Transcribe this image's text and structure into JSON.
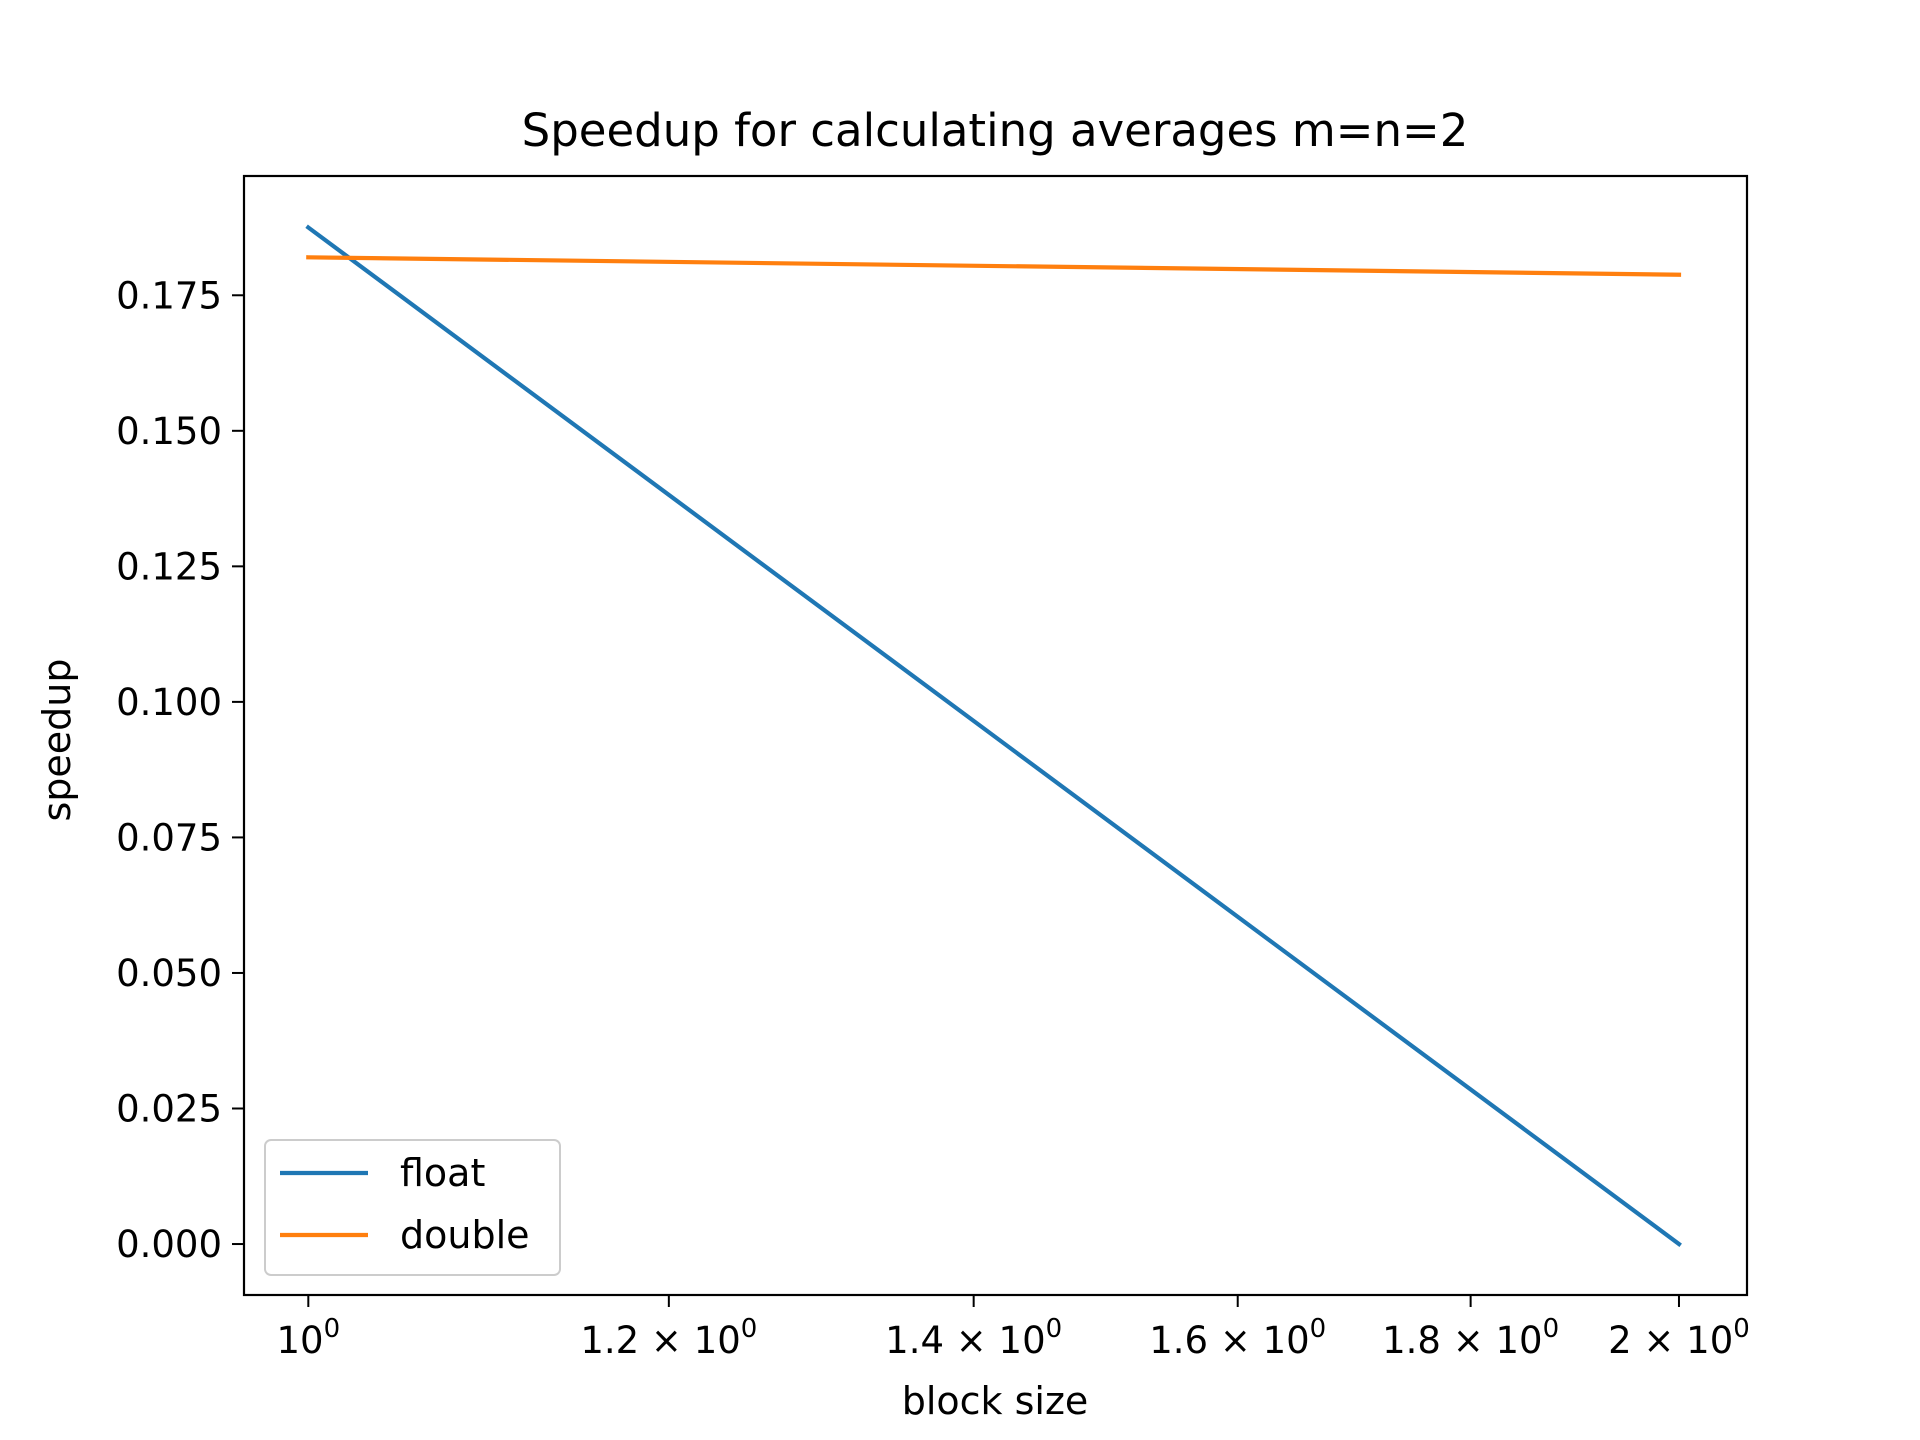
{
  "chart_data": {
    "type": "line",
    "title": "Speedup for calculating averages m=n=2",
    "xlabel": "block size",
    "ylabel": "speedup",
    "xscale": "log",
    "xlim": [
      0.968,
      2.07
    ],
    "ylim": [
      -0.0094,
      0.197
    ],
    "x_ticks": [
      {
        "value": 1.0,
        "base": "10",
        "exp": "0"
      },
      {
        "value": 1.2,
        "base": "1.2 × 10",
        "exp": "0"
      },
      {
        "value": 1.4,
        "base": "1.4 × 10",
        "exp": "0"
      },
      {
        "value": 1.6,
        "base": "1.6 × 10",
        "exp": "0"
      },
      {
        "value": 1.8,
        "base": "1.8 × 10",
        "exp": "0"
      },
      {
        "value": 2.0,
        "base": "2 × 10",
        "exp": "0"
      }
    ],
    "y_ticks": [
      {
        "value": 0.0,
        "label": "0.000"
      },
      {
        "value": 0.025,
        "label": "0.025"
      },
      {
        "value": 0.05,
        "label": "0.050"
      },
      {
        "value": 0.075,
        "label": "0.075"
      },
      {
        "value": 0.1,
        "label": "0.100"
      },
      {
        "value": 0.125,
        "label": "0.125"
      },
      {
        "value": 0.15,
        "label": "0.150"
      },
      {
        "value": 0.175,
        "label": "0.175"
      }
    ],
    "x": [
      1,
      2
    ],
    "series": [
      {
        "name": "float",
        "values": [
          0.1875,
          0.0
        ],
        "color": "#1f77b4"
      },
      {
        "name": "double",
        "values": [
          0.182,
          0.1788
        ],
        "color": "#ff7f0e"
      }
    ],
    "grid": false,
    "legend_position": "lower-left"
  }
}
